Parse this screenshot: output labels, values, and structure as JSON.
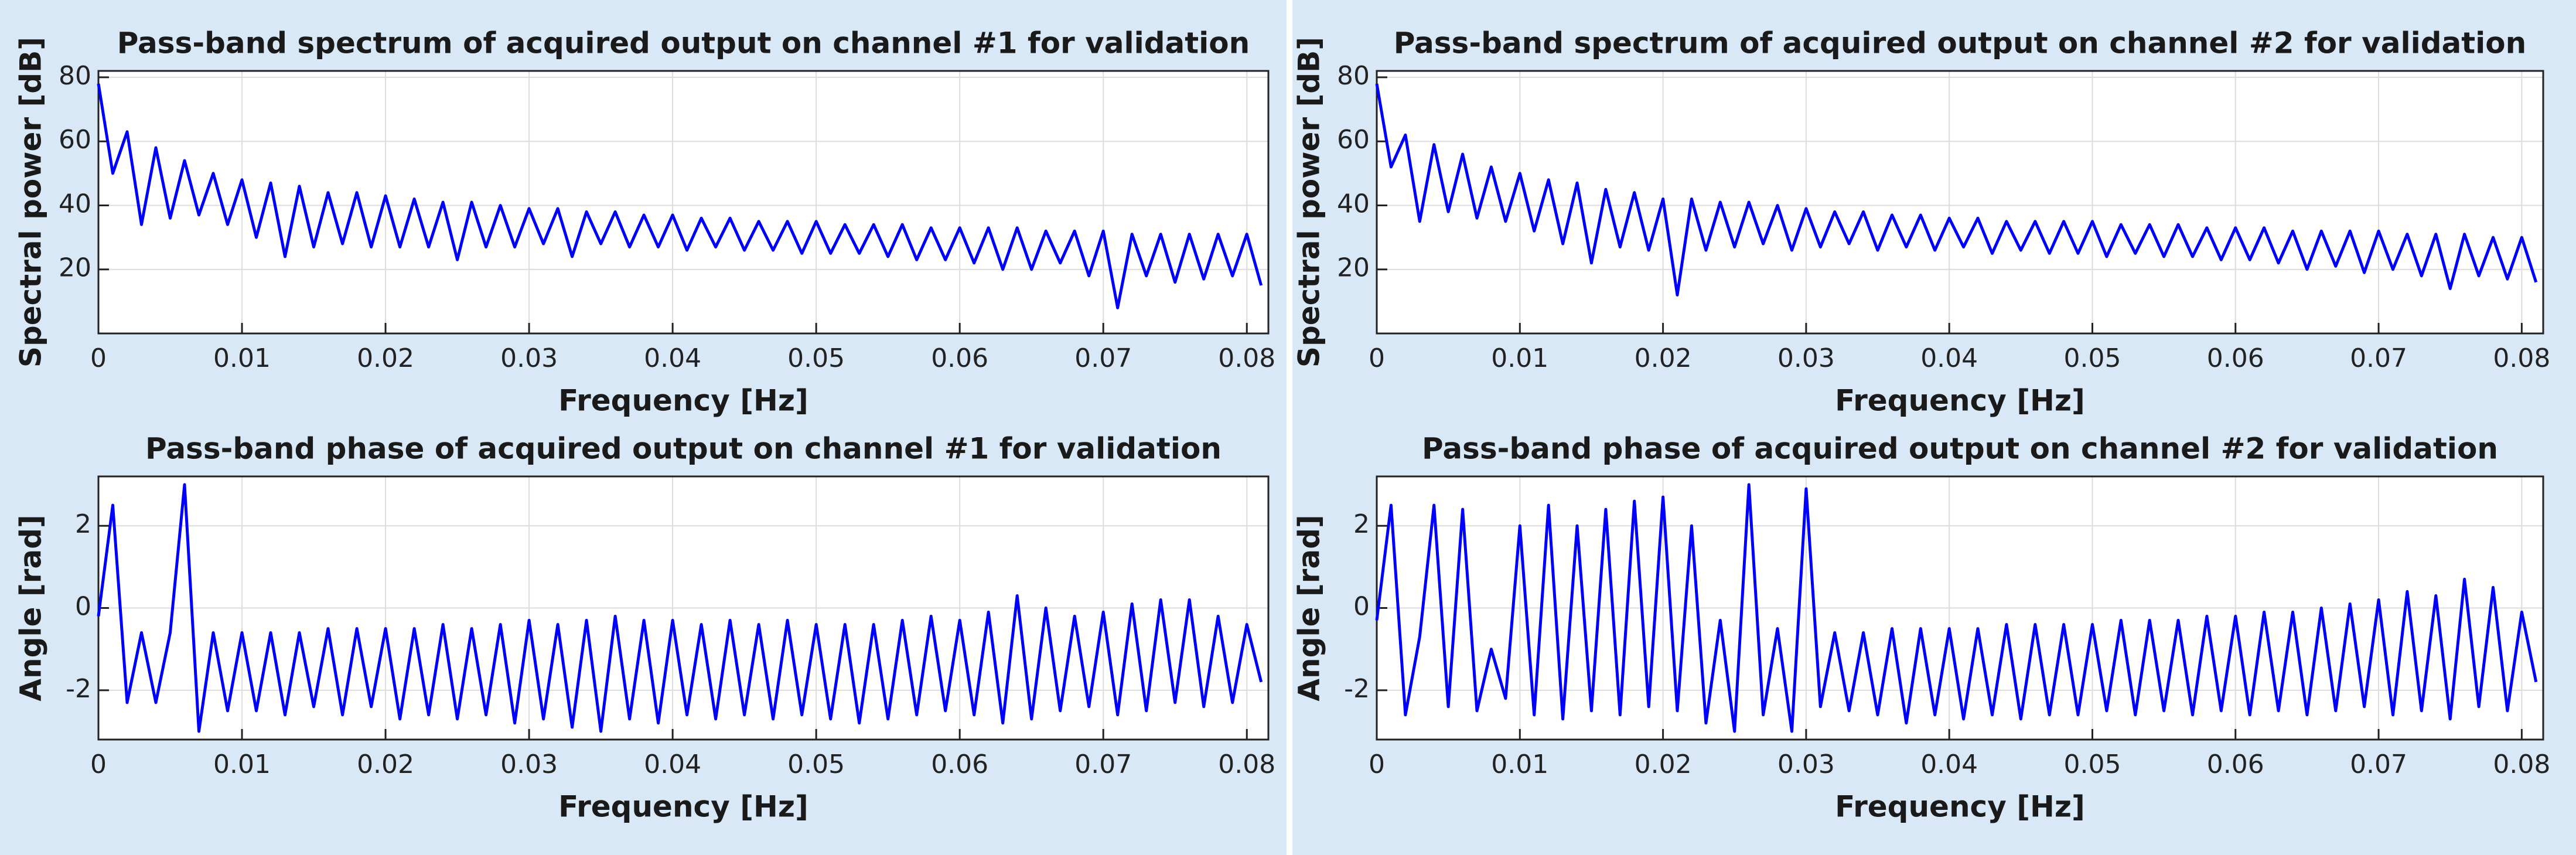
{
  "chart_data": [
    {
      "type": "line",
      "title": "Pass-band spectrum of acquired output on channel #1 for validation",
      "xlabel": "Frequency [Hz]",
      "ylabel": "Spectral power [dB]",
      "x": [
        0,
        0.001,
        0.002,
        0.003,
        0.004,
        0.005,
        0.006,
        0.007,
        0.008,
        0.009,
        0.01,
        0.011,
        0.012,
        0.013,
        0.014,
        0.015,
        0.016,
        0.017,
        0.018,
        0.019,
        0.02,
        0.021,
        0.022,
        0.023,
        0.024,
        0.025,
        0.026,
        0.027,
        0.028,
        0.029,
        0.03,
        0.031,
        0.032,
        0.033,
        0.034,
        0.035,
        0.036,
        0.037,
        0.038,
        0.039,
        0.04,
        0.041,
        0.042,
        0.043,
        0.044,
        0.045,
        0.046,
        0.047,
        0.048,
        0.049,
        0.05,
        0.051,
        0.052,
        0.053,
        0.054,
        0.055,
        0.056,
        0.057,
        0.058,
        0.059,
        0.06,
        0.061,
        0.062,
        0.063,
        0.064,
        0.065,
        0.066,
        0.067,
        0.068,
        0.069,
        0.07,
        0.071,
        0.072,
        0.073,
        0.074,
        0.075,
        0.076,
        0.077,
        0.078,
        0.079,
        0.08,
        0.081
      ],
      "series": [
        {
          "color": "#0000ff",
          "values": [
            78,
            50,
            63,
            34,
            58,
            36,
            54,
            37,
            50,
            34,
            48,
            30,
            47,
            24,
            46,
            27,
            44,
            28,
            44,
            27,
            43,
            27,
            42,
            27,
            41,
            23,
            41,
            27,
            40,
            27,
            39,
            28,
            39,
            24,
            38,
            28,
            38,
            27,
            37,
            27,
            37,
            26,
            36,
            27,
            36,
            26,
            35,
            26,
            35,
            25,
            35,
            25,
            34,
            25,
            34,
            24,
            34,
            23,
            33,
            23,
            33,
            22,
            33,
            20,
            33,
            20,
            32,
            22,
            32,
            18,
            32,
            8,
            31,
            18,
            31,
            16,
            31,
            17,
            31,
            18,
            31,
            15
          ]
        }
      ],
      "xlim": [
        0,
        0.0815
      ],
      "ylim": [
        0,
        82
      ],
      "xticks": [
        0,
        0.01,
        0.02,
        0.03,
        0.04,
        0.05,
        0.06,
        0.07,
        0.08
      ],
      "yticks": [
        20,
        40,
        60,
        80
      ],
      "grid": true
    },
    {
      "type": "line",
      "title": "Pass-band spectrum of acquired output on channel #2 for validation",
      "xlabel": "Frequency [Hz]",
      "ylabel": "Spectral power [dB]",
      "x": [
        0,
        0.001,
        0.002,
        0.003,
        0.004,
        0.005,
        0.006,
        0.007,
        0.008,
        0.009,
        0.01,
        0.011,
        0.012,
        0.013,
        0.014,
        0.015,
        0.016,
        0.017,
        0.018,
        0.019,
        0.02,
        0.021,
        0.022,
        0.023,
        0.024,
        0.025,
        0.026,
        0.027,
        0.028,
        0.029,
        0.03,
        0.031,
        0.032,
        0.033,
        0.034,
        0.035,
        0.036,
        0.037,
        0.038,
        0.039,
        0.04,
        0.041,
        0.042,
        0.043,
        0.044,
        0.045,
        0.046,
        0.047,
        0.048,
        0.049,
        0.05,
        0.051,
        0.052,
        0.053,
        0.054,
        0.055,
        0.056,
        0.057,
        0.058,
        0.059,
        0.06,
        0.061,
        0.062,
        0.063,
        0.064,
        0.065,
        0.066,
        0.067,
        0.068,
        0.069,
        0.07,
        0.071,
        0.072,
        0.073,
        0.074,
        0.075,
        0.076,
        0.077,
        0.078,
        0.079,
        0.08,
        0.081
      ],
      "series": [
        {
          "color": "#0000ff",
          "values": [
            78,
            52,
            62,
            35,
            59,
            38,
            56,
            36,
            52,
            35,
            50,
            32,
            48,
            28,
            47,
            22,
            45,
            27,
            44,
            26,
            42,
            12,
            42,
            26,
            41,
            27,
            41,
            28,
            40,
            26,
            39,
            27,
            38,
            28,
            38,
            26,
            37,
            27,
            37,
            26,
            36,
            27,
            36,
            25,
            35,
            26,
            35,
            25,
            35,
            25,
            35,
            24,
            34,
            25,
            34,
            24,
            34,
            24,
            33,
            23,
            33,
            23,
            33,
            22,
            32,
            20,
            32,
            21,
            32,
            19,
            32,
            20,
            31,
            18,
            31,
            14,
            31,
            18,
            30,
            17,
            30,
            16
          ]
        }
      ],
      "xlim": [
        0,
        0.0815
      ],
      "ylim": [
        0,
        82
      ],
      "xticks": [
        0,
        0.01,
        0.02,
        0.03,
        0.04,
        0.05,
        0.06,
        0.07,
        0.08
      ],
      "yticks": [
        20,
        40,
        60,
        80
      ],
      "grid": true
    },
    {
      "type": "line",
      "title": "Pass-band phase of acquired output on channel #1 for validation",
      "xlabel": "Frequency [Hz]",
      "ylabel": "Angle [rad]",
      "x": [
        0,
        0.001,
        0.002,
        0.003,
        0.004,
        0.005,
        0.006,
        0.007,
        0.008,
        0.009,
        0.01,
        0.011,
        0.012,
        0.013,
        0.014,
        0.015,
        0.016,
        0.017,
        0.018,
        0.019,
        0.02,
        0.021,
        0.022,
        0.023,
        0.024,
        0.025,
        0.026,
        0.027,
        0.028,
        0.029,
        0.03,
        0.031,
        0.032,
        0.033,
        0.034,
        0.035,
        0.036,
        0.037,
        0.038,
        0.039,
        0.04,
        0.041,
        0.042,
        0.043,
        0.044,
        0.045,
        0.046,
        0.047,
        0.048,
        0.049,
        0.05,
        0.051,
        0.052,
        0.053,
        0.054,
        0.055,
        0.056,
        0.057,
        0.058,
        0.059,
        0.06,
        0.061,
        0.062,
        0.063,
        0.064,
        0.065,
        0.066,
        0.067,
        0.068,
        0.069,
        0.07,
        0.071,
        0.072,
        0.073,
        0.074,
        0.075,
        0.076,
        0.077,
        0.078,
        0.079,
        0.08,
        0.081
      ],
      "series": [
        {
          "color": "#0000ff",
          "values": [
            -0.2,
            2.5,
            -2.3,
            -0.6,
            -2.3,
            -0.6,
            3.0,
            -3.0,
            -0.6,
            -2.5,
            -0.6,
            -2.5,
            -0.6,
            -2.6,
            -0.6,
            -2.4,
            -0.5,
            -2.6,
            -0.5,
            -2.4,
            -0.5,
            -2.7,
            -0.5,
            -2.6,
            -0.4,
            -2.7,
            -0.5,
            -2.6,
            -0.4,
            -2.8,
            -0.3,
            -2.7,
            -0.4,
            -2.9,
            -0.3,
            -3.0,
            -0.2,
            -2.7,
            -0.3,
            -2.8,
            -0.3,
            -2.6,
            -0.4,
            -2.7,
            -0.3,
            -2.6,
            -0.4,
            -2.7,
            -0.3,
            -2.6,
            -0.4,
            -2.7,
            -0.4,
            -2.8,
            -0.4,
            -2.7,
            -0.3,
            -2.6,
            -0.2,
            -2.5,
            -0.3,
            -2.6,
            -0.1,
            -2.8,
            0.3,
            -2.7,
            0.0,
            -2.5,
            -0.2,
            -2.4,
            -0.1,
            -2.6,
            0.1,
            -2.5,
            0.2,
            -2.3,
            0.2,
            -2.4,
            -0.2,
            -2.3,
            -0.4,
            -1.8
          ]
        }
      ],
      "xlim": [
        0,
        0.0815
      ],
      "ylim": [
        -3.2,
        3.2
      ],
      "xticks": [
        0,
        0.01,
        0.02,
        0.03,
        0.04,
        0.05,
        0.06,
        0.07,
        0.08
      ],
      "yticks": [
        -2,
        0,
        2
      ],
      "grid": true
    },
    {
      "type": "line",
      "title": "Pass-band phase of acquired output on channel #2 for validation",
      "xlabel": "Frequency [Hz]",
      "ylabel": "Angle [rad]",
      "x": [
        0,
        0.001,
        0.002,
        0.003,
        0.004,
        0.005,
        0.006,
        0.007,
        0.008,
        0.009,
        0.01,
        0.011,
        0.012,
        0.013,
        0.014,
        0.015,
        0.016,
        0.017,
        0.018,
        0.019,
        0.02,
        0.021,
        0.022,
        0.023,
        0.024,
        0.025,
        0.026,
        0.027,
        0.028,
        0.029,
        0.03,
        0.031,
        0.032,
        0.033,
        0.034,
        0.035,
        0.036,
        0.037,
        0.038,
        0.039,
        0.04,
        0.041,
        0.042,
        0.043,
        0.044,
        0.045,
        0.046,
        0.047,
        0.048,
        0.049,
        0.05,
        0.051,
        0.052,
        0.053,
        0.054,
        0.055,
        0.056,
        0.057,
        0.058,
        0.059,
        0.06,
        0.061,
        0.062,
        0.063,
        0.064,
        0.065,
        0.066,
        0.067,
        0.068,
        0.069,
        0.07,
        0.071,
        0.072,
        0.073,
        0.074,
        0.075,
        0.076,
        0.077,
        0.078,
        0.079,
        0.08,
        0.081
      ],
      "series": [
        {
          "color": "#0000ff",
          "values": [
            -0.3,
            2.5,
            -2.6,
            -0.7,
            2.5,
            -2.4,
            2.4,
            -2.5,
            -1.0,
            -2.2,
            2.0,
            -2.6,
            2.5,
            -2.7,
            2.0,
            -2.5,
            2.4,
            -2.6,
            2.6,
            -2.4,
            2.7,
            -2.5,
            2.0,
            -2.8,
            -0.3,
            -3.0,
            3.0,
            -2.6,
            -0.5,
            -3.0,
            2.9,
            -2.4,
            -0.6,
            -2.5,
            -0.6,
            -2.6,
            -0.5,
            -2.8,
            -0.5,
            -2.6,
            -0.5,
            -2.7,
            -0.5,
            -2.6,
            -0.4,
            -2.7,
            -0.4,
            -2.6,
            -0.4,
            -2.6,
            -0.4,
            -2.5,
            -0.3,
            -2.6,
            -0.3,
            -2.5,
            -0.3,
            -2.6,
            -0.2,
            -2.5,
            -0.2,
            -2.6,
            -0.1,
            -2.5,
            -0.1,
            -2.6,
            0.0,
            -2.5,
            0.1,
            -2.4,
            0.2,
            -2.6,
            0.4,
            -2.5,
            0.3,
            -2.7,
            0.7,
            -2.4,
            0.5,
            -2.5,
            -0.1,
            -1.8
          ]
        }
      ],
      "xlim": [
        0,
        0.0815
      ],
      "ylim": [
        -3.2,
        3.2
      ],
      "xticks": [
        0,
        0.01,
        0.02,
        0.03,
        0.04,
        0.05,
        0.06,
        0.07,
        0.08
      ],
      "yticks": [
        -2,
        0,
        2
      ],
      "grid": true
    }
  ]
}
